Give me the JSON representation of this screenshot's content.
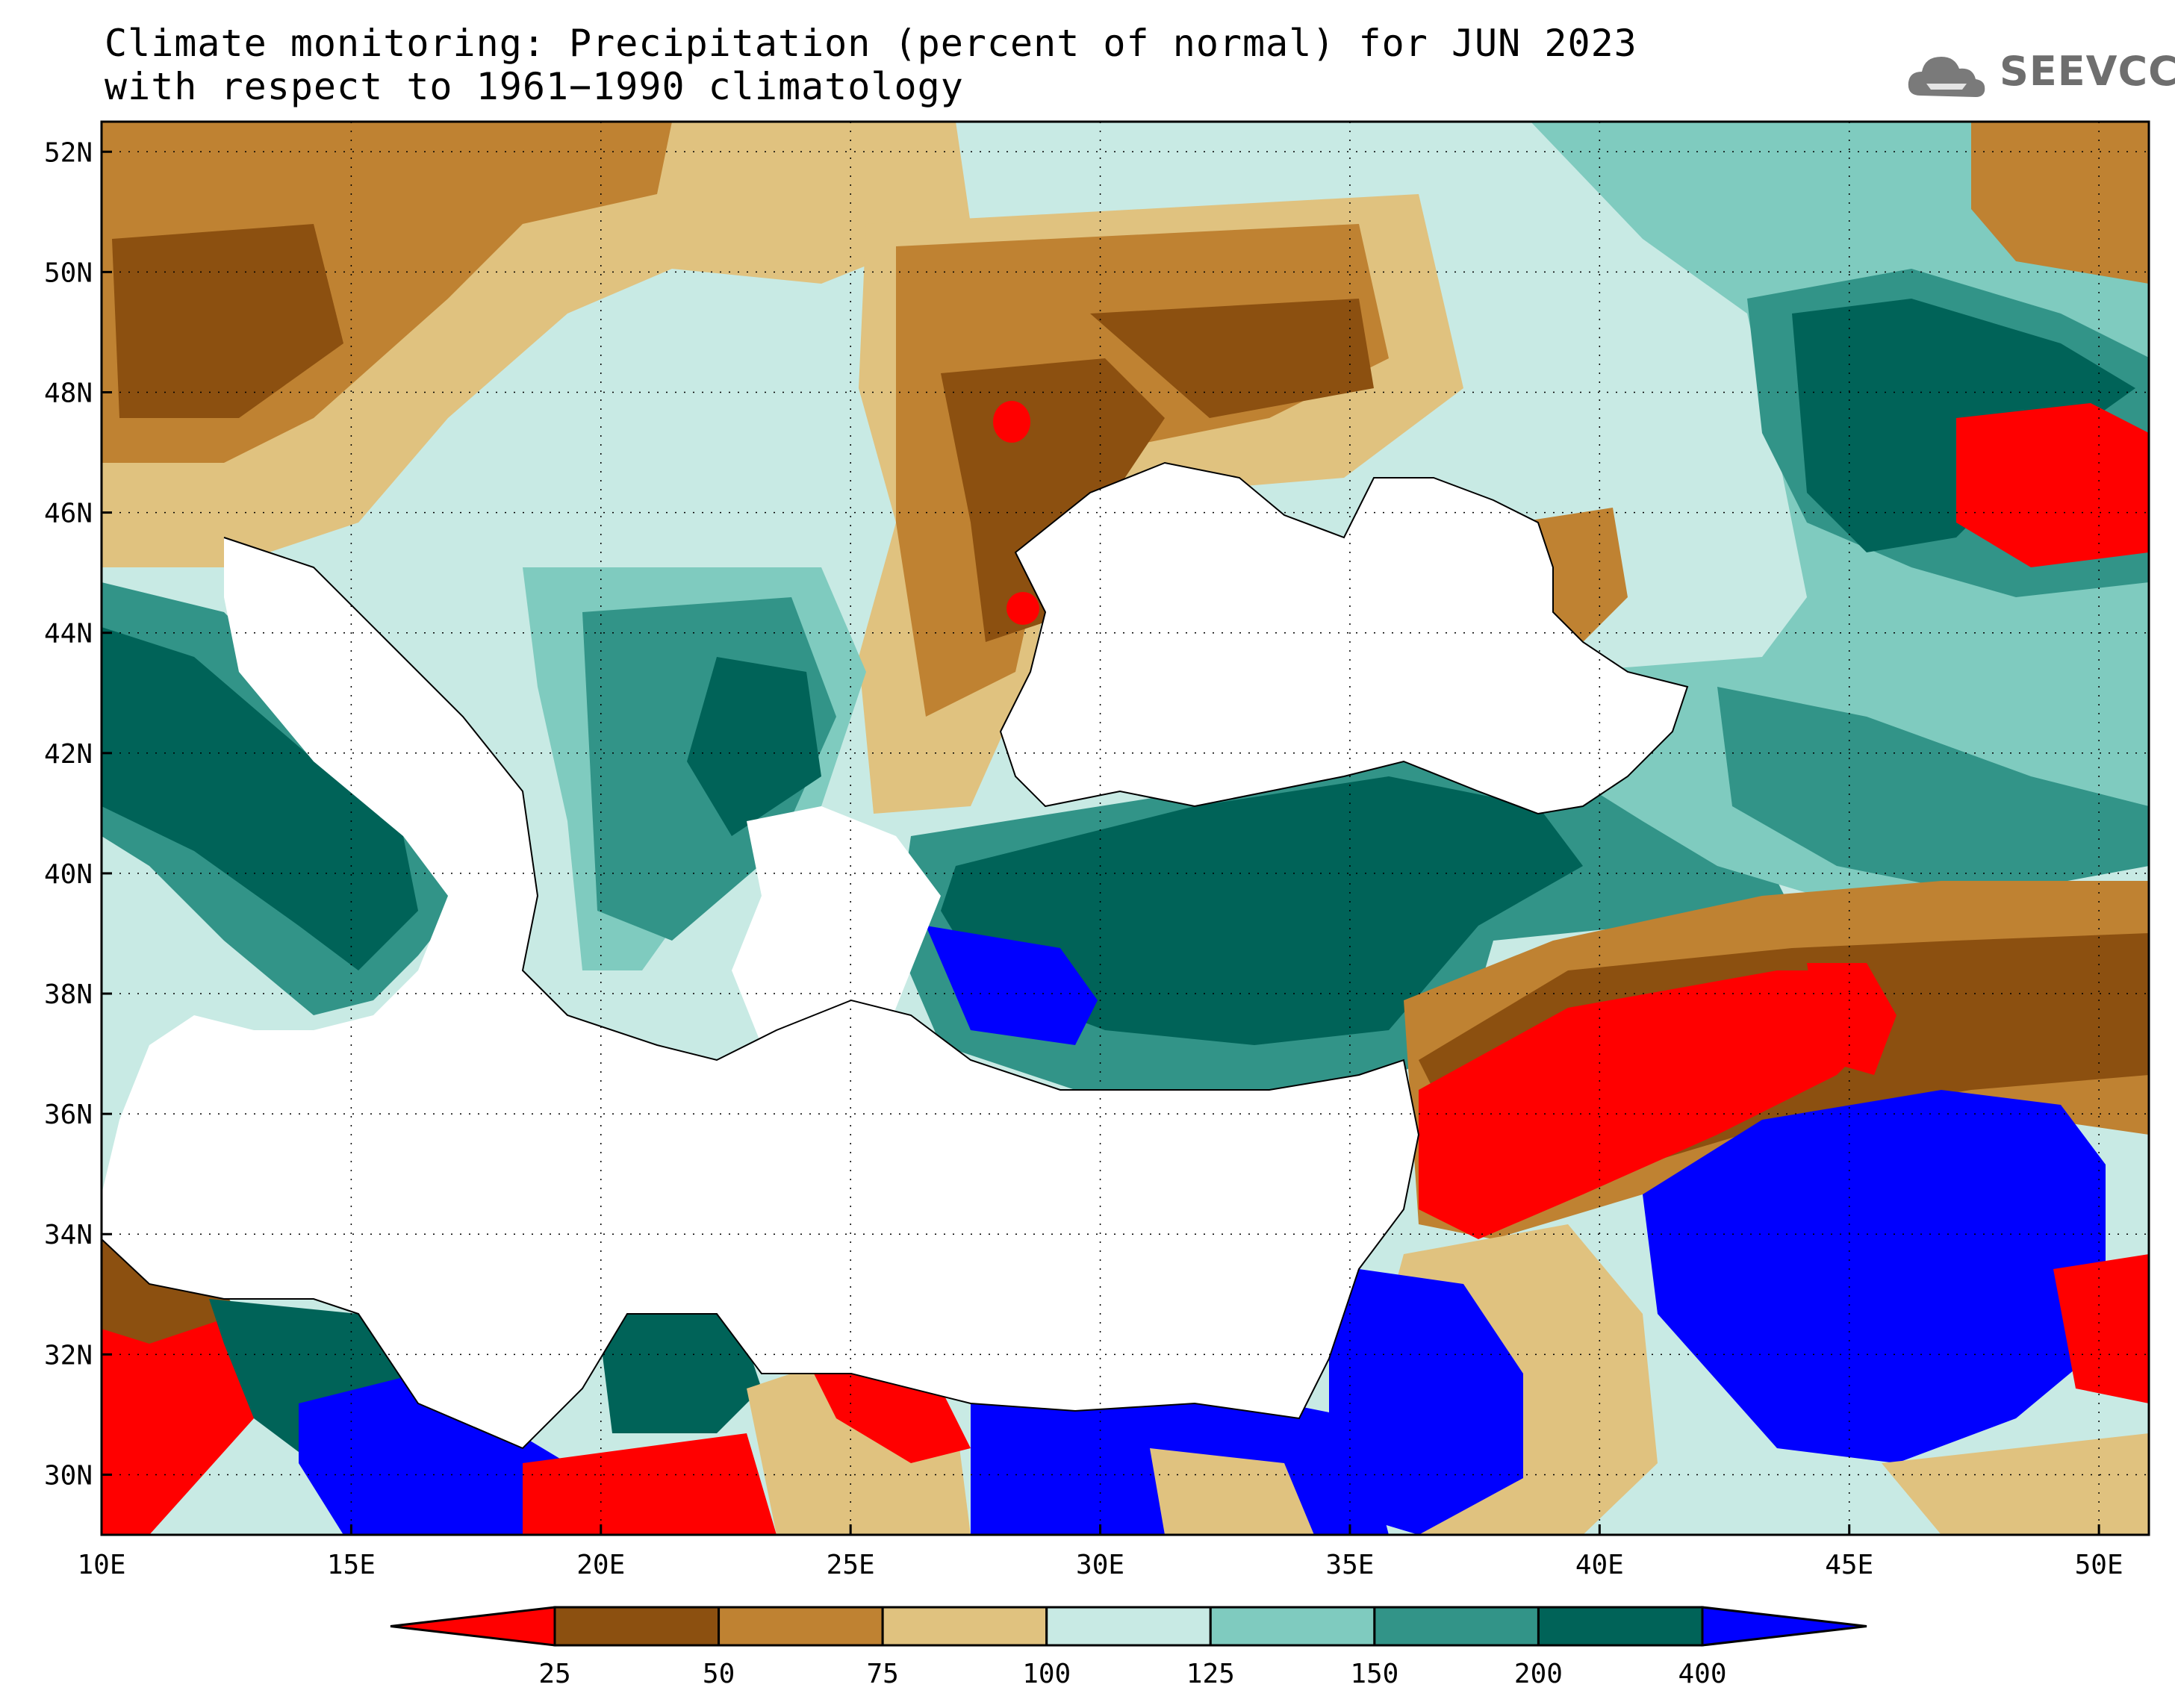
{
  "title": {
    "line1": "Climate monitoring: Precipitation (percent of normal) for JUN 2023",
    "line2": "with respect to 1961−1990 climatology"
  },
  "logo": {
    "text": "SEEVCCC",
    "icon": "cloud-icon"
  },
  "map": {
    "lon_range": [
      10,
      51
    ],
    "lat_range": [
      29,
      52.5
    ],
    "x_ticks": [
      "10E",
      "15E",
      "20E",
      "25E",
      "30E",
      "35E",
      "40E",
      "45E",
      "50E"
    ],
    "y_ticks": [
      "30N",
      "32N",
      "34N",
      "36N",
      "38N",
      "40N",
      "42N",
      "44N",
      "46N",
      "48N",
      "50N",
      "52N"
    ]
  },
  "legend": {
    "breaks": [
      "25",
      "50",
      "75",
      "100",
      "125",
      "150",
      "200",
      "400"
    ],
    "colors": [
      "#ff0000",
      "#8c5010",
      "#bf8232",
      "#e0c27f",
      "#c8eae4",
      "#7fcbbf",
      "#329488",
      "#006358",
      "#0000ff"
    ]
  }
}
